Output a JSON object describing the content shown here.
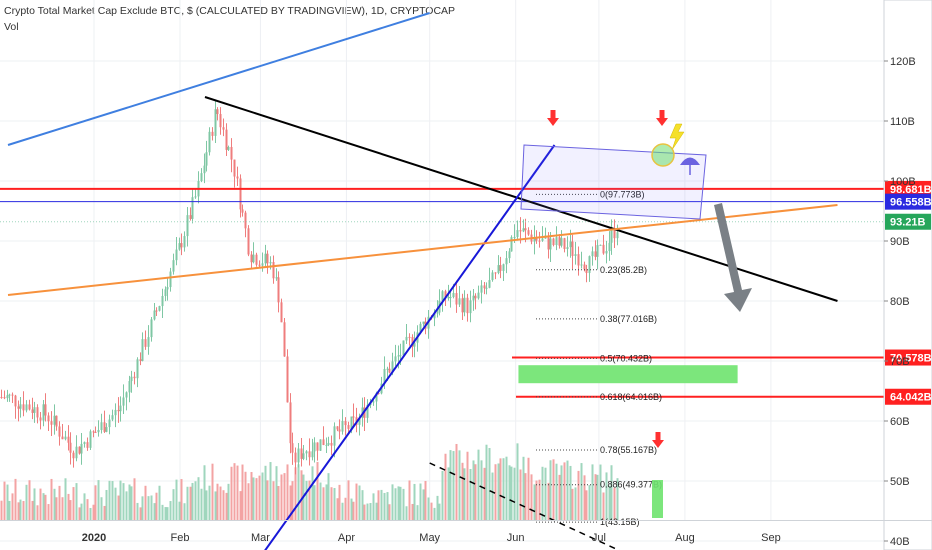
{
  "header": {
    "title": "Crypto Total Market Cap Exclude BTC, $ (CALCULATED BY TRADINGVIEW), 1D, CRYPTOCAP",
    "indicator": "Vol"
  },
  "colors": {
    "up": "#7fc7a4",
    "down": "#ef7d7d",
    "vol_up": "#9fd6bd",
    "vol_down": "#f3a3a3",
    "resistance": "#ff2020",
    "blue_line": "#1818d8",
    "light_blue": "#3f7fe0",
    "orange": "#f7913c",
    "green_zone": "#6ee36e",
    "price_tag": "#26a65b"
  },
  "chart_data": {
    "type": "candlestick",
    "x_axis": {
      "labels": [
        "2020",
        "Feb",
        "Mar",
        "Apr",
        "May",
        "Jun",
        "Jul",
        "Aug",
        "Sep"
      ],
      "dates": [
        "2020-01-01",
        "2020-02-01",
        "2020-03-01",
        "2020-04-01",
        "2020-05-01",
        "2020-06-01",
        "2020-07-01",
        "2020-08-01",
        "2020-09-01"
      ]
    },
    "y_axis": {
      "labels": [
        "120B",
        "110B",
        "100B",
        "90B",
        "80B",
        "70B",
        "60B",
        "50B",
        "40B"
      ],
      "values": [
        120,
        110,
        100,
        90,
        80,
        70,
        60,
        50,
        40
      ],
      "unit": "B"
    },
    "close_path": [
      [
        "2019-12-01",
        64
      ],
      [
        "2019-12-15",
        61
      ],
      [
        "2019-12-25",
        55
      ],
      [
        "2020-01-01",
        58
      ],
      [
        "2020-01-10",
        62
      ],
      [
        "2020-01-20",
        74
      ],
      [
        "2020-01-31",
        88
      ],
      [
        "2020-02-07",
        98
      ],
      [
        "2020-02-14",
        112
      ],
      [
        "2020-02-20",
        103
      ],
      [
        "2020-02-26",
        88
      ],
      [
        "2020-03-05",
        86
      ],
      [
        "2020-03-08",
        80
      ],
      [
        "2020-03-12",
        53
      ],
      [
        "2020-03-16",
        55
      ],
      [
        "2020-03-25",
        57
      ],
      [
        "2020-04-05",
        60
      ],
      [
        "2020-04-15",
        68
      ],
      [
        "2020-04-25",
        74
      ],
      [
        "2020-05-07",
        81
      ],
      [
        "2020-05-15",
        79
      ],
      [
        "2020-05-25",
        84
      ],
      [
        "2020-06-01",
        92
      ],
      [
        "2020-06-10",
        90
      ],
      [
        "2020-06-20",
        89
      ],
      [
        "2020-06-27",
        86
      ],
      [
        "2020-07-03",
        89
      ],
      [
        "2020-07-08",
        93
      ]
    ],
    "horizontal_levels": [
      {
        "label": "98.681B",
        "value": 98.681,
        "color": "#ff2020"
      },
      {
        "label": "96.558B",
        "value": 96.558,
        "color": "#2a2ae0"
      },
      {
        "label": "93.21B",
        "value": 93.21,
        "color": "#26a65b"
      },
      {
        "label": "70.578B",
        "value": 70.578,
        "color": "#ff2020"
      },
      {
        "label": "64.042B",
        "value": 64.042,
        "color": "#ff2020"
      }
    ],
    "fib_levels": [
      {
        "label": "0(97.773B)",
        "value": 97.773
      },
      {
        "label": "0.23(85.2B)",
        "value": 85.2
      },
      {
        "label": "0.38(77.016B)",
        "value": 77.016
      },
      {
        "label": "0.5(70.432B)",
        "value": 70.432
      },
      {
        "label": "0.618(64.016B)",
        "value": 64.016
      },
      {
        "label": "0.78(55.167B)",
        "value": 55.167
      },
      {
        "label": "0.886(49.377B)",
        "value": 49.377
      },
      {
        "label": "1(43.15B)",
        "value": 43.15
      }
    ],
    "trendlines": [
      {
        "name": "descending-resistance",
        "color": "#000000",
        "from": [
          "2020-02-10",
          114
        ],
        "to": [
          "2020-09-25",
          80
        ]
      },
      {
        "name": "rising-support",
        "color": "#1818d8",
        "from": [
          "2020-03-02",
          38
        ],
        "to": [
          "2020-06-15",
          106
        ]
      },
      {
        "name": "orange-support",
        "color": "#f7913c",
        "from": [
          "2019-12-01",
          81
        ],
        "to": [
          "2020-09-25",
          96
        ]
      },
      {
        "name": "long-term-blue",
        "color": "#3f7fe0",
        "from": [
          "2019-12-01",
          106
        ],
        "to": [
          "2020-05-01",
          128
        ]
      },
      {
        "name": "volume-downtrend",
        "color": "#000000",
        "dashed": true,
        "from": [
          "2020-05-01",
          53
        ],
        "to": [
          "2020-07-15",
          37
        ]
      }
    ],
    "target_zone": {
      "from": "2020-06-02",
      "to": "2020-08-20",
      "low": 66.3,
      "high": 69.3
    }
  }
}
